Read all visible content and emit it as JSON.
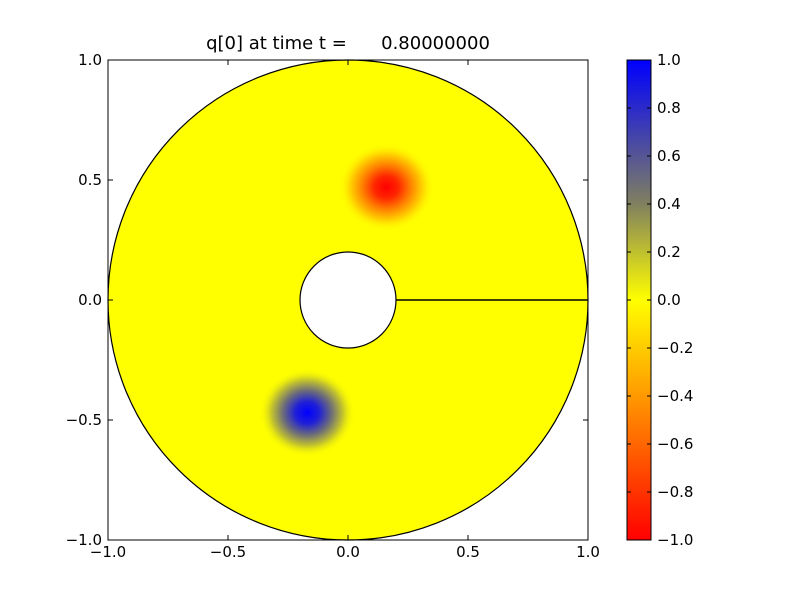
{
  "chart_data": {
    "type": "heatmap",
    "title": "q[0] at time t =      0.80000000",
    "xlabel": "",
    "ylabel": "",
    "xlim": [
      -1.0,
      1.0
    ],
    "ylim": [
      -1.0,
      1.0
    ],
    "x_ticks": [
      -1.0,
      -0.5,
      0.0,
      0.5,
      1.0
    ],
    "y_ticks": [
      -1.0,
      -0.5,
      0.0,
      0.5,
      1.0
    ],
    "x_tick_labels": [
      "−1.0",
      "−0.5",
      "0.0",
      "0.5",
      "1.0"
    ],
    "y_tick_labels": [
      "−1.0",
      "−0.5",
      "0.0",
      "0.5",
      "1.0"
    ],
    "grid": false,
    "domain": {
      "shape": "annulus",
      "center": [
        0.0,
        0.0
      ],
      "outer_radius": 1.0,
      "inner_radius": 0.2,
      "branch_cut": {
        "from": [
          0.2,
          0.0
        ],
        "to": [
          1.0,
          0.0
        ]
      }
    },
    "field_features": [
      {
        "sign": "negative",
        "center": [
          0.16,
          0.47
        ],
        "peak_value": -1.0,
        "approx_radius": 0.2
      },
      {
        "sign": "positive",
        "center": [
          -0.17,
          -0.47
        ],
        "peak_value": 1.0,
        "approx_radius": 0.2
      }
    ],
    "background_value": 0.0,
    "colorbar": {
      "position": "right",
      "range": [
        -1.0,
        1.0
      ],
      "ticks": [
        1.0,
        0.8,
        0.6,
        0.4,
        0.2,
        0.0,
        -0.2,
        -0.4,
        -0.6,
        -0.8,
        -1.0
      ],
      "tick_labels": [
        "1.0",
        "0.8",
        "0.6",
        "0.4",
        "0.2",
        "0.0",
        "−0.2",
        "−0.4",
        "−0.6",
        "−0.8",
        "−1.0"
      ],
      "colors": [
        {
          "value": -1.0,
          "color": "#ff0000"
        },
        {
          "value": 0.0,
          "color": "#ffff00"
        },
        {
          "value": 0.4,
          "color": "#808060"
        },
        {
          "value": 1.0,
          "color": "#0000ff"
        }
      ]
    }
  }
}
